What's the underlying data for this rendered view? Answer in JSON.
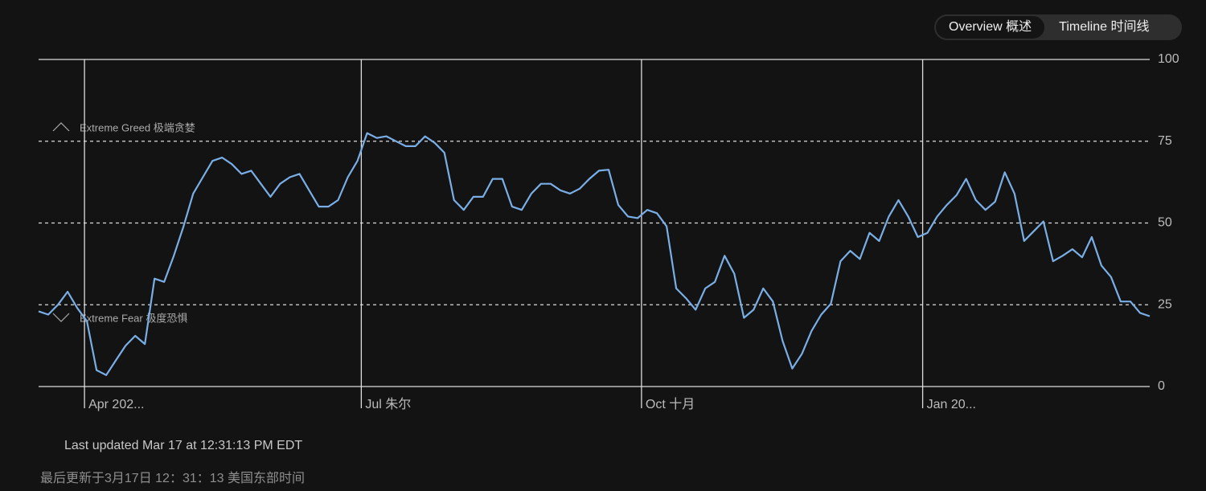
{
  "tabs": [
    {
      "label": "Overview 概述",
      "active": true
    },
    {
      "label": "Timeline 时间线",
      "active": false
    }
  ],
  "chart_data": {
    "type": "line",
    "annotations": {
      "greed": "Extreme Greed  极端贪婪",
      "fear": "Extreme Fear  极度恐惧"
    },
    "series": [
      {
        "color": "#7aaee6",
        "values": [
          23,
          22,
          25,
          29,
          24,
          20,
          5,
          3.5,
          8,
          12.5,
          15.5,
          13,
          33,
          32,
          40,
          49,
          59,
          64,
          69,
          70,
          68,
          65,
          66,
          62,
          58,
          62,
          64,
          65,
          60,
          55,
          55,
          57,
          64,
          69,
          77.5,
          76,
          76.5,
          75,
          73.5,
          73.5,
          76.5,
          74.5,
          71.5,
          57,
          54,
          58,
          58,
          63.5,
          63.5,
          55,
          54,
          59,
          62,
          62,
          60,
          59,
          60.5,
          63.5,
          66,
          66.3,
          55.5,
          52,
          51.5,
          54,
          53,
          49,
          30,
          27,
          23.5,
          30,
          32,
          40,
          34.5,
          21,
          23.5,
          30,
          26,
          14,
          5.5,
          10,
          17,
          22,
          25.3,
          38.3,
          41.5,
          39,
          47,
          44.5,
          52,
          57,
          52,
          45.7,
          47,
          52,
          55.5,
          58.5,
          63.5,
          57,
          54,
          56.5,
          65.5,
          59,
          44.5,
          47.5,
          50.5,
          38.3,
          40,
          42,
          39.5,
          45.7,
          37,
          33.5,
          26,
          26,
          22.5,
          21.5
        ]
      }
    ],
    "xlim": [
      0,
      115
    ],
    "xticks": [
      {
        "value": 4.75,
        "label": "Apr 202..."
      },
      {
        "value": 33.4,
        "label": "Jul  朱尔"
      },
      {
        "value": 62.4,
        "label": "Oct  十月"
      },
      {
        "value": 91.5,
        "label": "Jan 20..."
      }
    ],
    "ylim": [
      0,
      100
    ],
    "yticks": [
      0,
      25,
      50,
      75,
      100
    ],
    "grid": true
  },
  "footer": {
    "updated": "Last updated Mar 17 at 12:31:13 PM EDT",
    "updated_cn": "最后更新于3月17日 12：31：13 美国东部时间"
  }
}
